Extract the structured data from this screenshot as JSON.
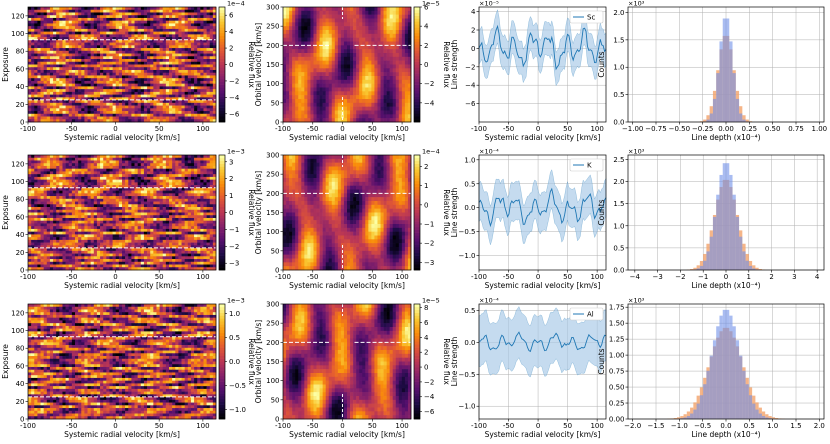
{
  "colors": {
    "inferno_low": "#000004",
    "inferno_mid1": "#57106e",
    "inferno_mid2": "#bc3754",
    "inferno_mid3": "#f98e09",
    "inferno_high": "#fcffa4",
    "trace_line": "#1f77b4",
    "trace_band": "#a6c8e6",
    "hist_blue": "#6f8fe8",
    "hist_orange": "#f3a26a"
  },
  "chart_data": [
    {
      "id": "p1",
      "row": 0,
      "type": "heatmap",
      "xlabel": "Systemic radial velocity [km/s]",
      "ylabel": "Exposure",
      "xlim": [
        -100,
        115
      ],
      "ylim": [
        0,
        130
      ],
      "xticks": [
        "-100",
        "-50",
        "0",
        "50",
        "100"
      ],
      "yticks": [
        "0",
        "20",
        "40",
        "60",
        "80",
        "100",
        "120"
      ],
      "cbar_label": "Relative flux",
      "cbar_exponent": "1e−4",
      "cbar_range": [
        -7,
        7
      ],
      "cbar_ticks": [
        "6",
        "4",
        "2",
        "0",
        "−2",
        "−4",
        "−6"
      ],
      "dashed_lines": [
        93,
        25
      ],
      "seed": 11
    },
    {
      "id": "p2",
      "row": 0,
      "type": "heatmap",
      "xlabel": "Systemic radial velocity [km/s]",
      "ylabel": "Orbital velocity [km/s]",
      "xlim": [
        -100,
        115
      ],
      "ylim": [
        0,
        300
      ],
      "xticks": [
        "-100",
        "-50",
        "0",
        "50",
        "100"
      ],
      "yticks": [
        "0",
        "50",
        "100",
        "150",
        "200",
        "250",
        "300"
      ],
      "cbar_label": "Relative flux",
      "cbar_exponent": "1e−5",
      "cbar_range": [
        -6,
        6
      ],
      "cbar_ticks": [
        "6",
        "4",
        "2",
        "0",
        "−2",
        "−4"
      ],
      "dashed_h": 200,
      "dashed_v": 0,
      "seed": 21
    },
    {
      "id": "p3",
      "row": 0,
      "type": "line",
      "legend": "Sc",
      "ylabel": "Line strength",
      "xlabel": "Systemic radial velocity [km/s]",
      "exponent": "×10⁻⁵",
      "xlim": [
        -100,
        115
      ],
      "ylim": [
        -8,
        4.5
      ],
      "xticks": [
        "-100",
        "-50",
        "0",
        "50",
        "100"
      ],
      "yticks": [
        "−6",
        "−4",
        "−2",
        "0",
        "2",
        "4"
      ],
      "ytick_values": [
        -6,
        -4,
        -2,
        0,
        2,
        4
      ],
      "band_halfwidth": 1.8,
      "amplitude": 2.2,
      "seed": 31
    },
    {
      "id": "p4",
      "row": 0,
      "type": "histogram",
      "xlabel": "Line depth (x10⁻⁴)",
      "ylabel": "Counts",
      "exponent": "×10³",
      "xlim": [
        -1.05,
        1.05
      ],
      "ylim": [
        0,
        2.1
      ],
      "xticks": [
        "−1.00",
        "−0.75",
        "−0.50",
        "−0.25",
        "0.00",
        "0.25",
        "0.50",
        "0.75",
        "1.00"
      ],
      "xtick_values": [
        -1,
        -0.75,
        -0.5,
        -0.25,
        0,
        0.25,
        0.5,
        0.75,
        1
      ],
      "yticks": [
        "0.0",
        "0.5",
        "1.0",
        "1.5",
        "2.0"
      ],
      "ytick_values": [
        0,
        0.5,
        1,
        1.5,
        2
      ],
      "peak": 1.95,
      "sigma_blue": 0.07,
      "sigma_orange": 0.085
    },
    {
      "id": "p5",
      "row": 1,
      "type": "heatmap",
      "xlabel": "Systemic radial velocity [km/s]",
      "ylabel": "Exposure",
      "xlim": [
        -100,
        115
      ],
      "ylim": [
        0,
        130
      ],
      "xticks": [
        "-100",
        "-50",
        "0",
        "50",
        "100"
      ],
      "yticks": [
        "0",
        "20",
        "40",
        "60",
        "80",
        "100",
        "120"
      ],
      "cbar_label": "Relative flux",
      "cbar_exponent": "1e−3",
      "cbar_range": [
        -3.4,
        3.4
      ],
      "cbar_ticks": [
        "3",
        "2",
        "1",
        "0",
        "−1",
        "−2",
        "−3"
      ],
      "dashed_lines": [
        93,
        25
      ],
      "seed": 12
    },
    {
      "id": "p6",
      "row": 1,
      "type": "heatmap",
      "xlabel": "Systemic radial velocity [km/s]",
      "ylabel": "Orbital velocity [km/s]",
      "xlim": [
        -100,
        115
      ],
      "ylim": [
        0,
        300
      ],
      "xticks": [
        "-100",
        "-50",
        "0",
        "50",
        "100"
      ],
      "yticks": [
        "0",
        "50",
        "100",
        "150",
        "200",
        "250",
        "300"
      ],
      "cbar_label": "Relative flux",
      "cbar_exponent": "1e−4",
      "cbar_range": [
        -3.4,
        2.6
      ],
      "cbar_ticks": [
        "2",
        "1",
        "0",
        "−1",
        "−2",
        "−3"
      ],
      "dashed_h": 200,
      "dashed_v": 0,
      "seed": 22
    },
    {
      "id": "p7",
      "row": 1,
      "type": "line",
      "legend": "K",
      "ylabel": "Line strength",
      "xlabel": "Systemic radial velocity [km/s]",
      "exponent": "×10⁻⁴",
      "xlim": [
        -100,
        115
      ],
      "ylim": [
        -1.3,
        1.1
      ],
      "xticks": [
        "-100",
        "-50",
        "0",
        "50",
        "100"
      ],
      "yticks": [
        "−1.0",
        "−0.5",
        "0.0",
        "0.5",
        "1.0"
      ],
      "ytick_values": [
        -1,
        -0.5,
        0,
        0.5,
        1
      ],
      "band_halfwidth": 0.4,
      "amplitude": 0.35,
      "seed": 32
    },
    {
      "id": "p8",
      "row": 1,
      "type": "histogram",
      "xlabel": "Line depth (x10⁻⁴)",
      "ylabel": "Counts",
      "exponent": "×10³",
      "xlim": [
        -4.3,
        4.3
      ],
      "ylim": [
        0,
        2.6
      ],
      "xticks": [
        "−4",
        "−3",
        "−2",
        "−1",
        "0",
        "1",
        "2",
        "3",
        "4"
      ],
      "xtick_values": [
        -4,
        -3,
        -2,
        -1,
        0,
        1,
        2,
        3,
        4
      ],
      "yticks": [
        "0.0",
        "0.5",
        "1.0",
        "1.5",
        "2.0",
        "2.5"
      ],
      "ytick_values": [
        0,
        0.5,
        1,
        1.5,
        2,
        2.5
      ],
      "peak": 2.45,
      "sigma_blue": 0.42,
      "sigma_orange": 0.5
    },
    {
      "id": "p9",
      "row": 2,
      "type": "heatmap",
      "xlabel": "Systemic radial velocity [km/s]",
      "ylabel": "Exposure",
      "xlim": [
        -100,
        115
      ],
      "ylim": [
        0,
        130
      ],
      "xticks": [
        "-100",
        "-50",
        "0",
        "50",
        "100"
      ],
      "yticks": [
        "0",
        "20",
        "40",
        "60",
        "80",
        "100",
        "120"
      ],
      "cbar_label": "Relative flux",
      "cbar_exponent": "1e−3",
      "cbar_range": [
        -1.2,
        1.2
      ],
      "cbar_ticks": [
        "1.0",
        "0.5",
        "0.0",
        "−0.5",
        "−1.0"
      ],
      "dashed_lines": [
        93,
        25
      ],
      "seed": 13
    },
    {
      "id": "p10",
      "row": 2,
      "type": "heatmap",
      "xlabel": "Systemic radial velocity [km/s]",
      "ylabel": "Orbital velocity [km/s]",
      "xlim": [
        -100,
        115
      ],
      "ylim": [
        0,
        300
      ],
      "xticks": [
        "-100",
        "-50",
        "0",
        "50",
        "100"
      ],
      "yticks": [
        "0",
        "50",
        "100",
        "150",
        "200",
        "250",
        "300"
      ],
      "cbar_label": "Relative flux",
      "cbar_exponent": "1e−5",
      "cbar_range": [
        -7,
        8.5
      ],
      "cbar_ticks": [
        "8",
        "6",
        "4",
        "2",
        "0",
        "−2",
        "−4",
        "−6"
      ],
      "dashed_h": 200,
      "dashed_v": 0,
      "seed": 23
    },
    {
      "id": "p11",
      "row": 2,
      "type": "line",
      "legend": "Al",
      "ylabel": "Line strength",
      "xlabel": "Systemic radial velocity [km/s]",
      "exponent": "×10⁻⁴",
      "xlim": [
        -100,
        115
      ],
      "ylim": [
        -1.2,
        0.6
      ],
      "xticks": [
        "-100",
        "-50",
        "0",
        "50",
        "100"
      ],
      "yticks": [
        "−1.0",
        "−0.5",
        "0.0",
        "0.5"
      ],
      "ytick_values": [
        -1,
        -0.5,
        0,
        0.5
      ],
      "band_halfwidth": 0.4,
      "amplitude": 0.15,
      "seed": 33
    },
    {
      "id": "p12",
      "row": 2,
      "type": "histogram",
      "xlabel": "Line depth (x10⁻⁴)",
      "ylabel": "Counts",
      "exponent": "×10³",
      "xlim": [
        -2.1,
        2.1
      ],
      "ylim": [
        0,
        1.8
      ],
      "xticks": [
        "−2.0",
        "−1.5",
        "−1.0",
        "−0.5",
        "0.0",
        "0.5",
        "1.0",
        "1.5",
        "2.0"
      ],
      "xtick_values": [
        -2,
        -1.5,
        -1,
        -0.5,
        0,
        0.5,
        1,
        1.5,
        2
      ],
      "yticks": [
        "0.00",
        "0.25",
        "0.50",
        "0.75",
        "1.00",
        "1.25",
        "1.50",
        "1.75"
      ],
      "ytick_values": [
        0,
        0.25,
        0.5,
        0.75,
        1,
        1.25,
        1.5,
        1.75
      ],
      "peak": 1.72,
      "sigma_blue": 0.3,
      "sigma_orange": 0.36
    }
  ]
}
